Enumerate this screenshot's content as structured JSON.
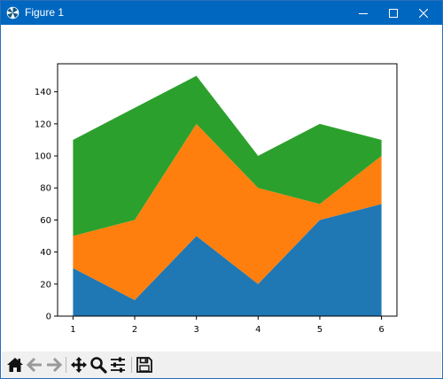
{
  "window": {
    "title": "Figure 1",
    "titlebar_color": "#0067c0"
  },
  "toolbar": {
    "tools": [
      {
        "name": "home-icon"
      },
      {
        "name": "back-arrow-icon"
      },
      {
        "name": "forward-arrow-icon"
      },
      {
        "name": "pan-icon"
      },
      {
        "name": "zoom-icon"
      },
      {
        "name": "configure-subplots-icon"
      },
      {
        "name": "save-icon"
      }
    ]
  },
  "chart_data": {
    "type": "area",
    "stacked": true,
    "x": [
      1,
      2,
      3,
      4,
      5,
      6
    ],
    "series": [
      {
        "values": [
          30,
          10,
          50,
          20,
          60,
          70
        ],
        "color": "#1f77b4"
      },
      {
        "values": [
          20,
          50,
          70,
          60,
          10,
          30
        ],
        "color": "#ff7f0e"
      },
      {
        "values": [
          60,
          70,
          30,
          20,
          50,
          10
        ],
        "color": "#2ca02c"
      }
    ],
    "xlim": [
      0.75,
      6.25
    ],
    "ylim": [
      0,
      157.5
    ],
    "xticks": [
      "1",
      "2",
      "3",
      "4",
      "5",
      "6"
    ],
    "yticks": [
      "0",
      "20",
      "40",
      "60",
      "80",
      "100",
      "120",
      "140"
    ],
    "grid": false,
    "title": "",
    "xlabel": "",
    "ylabel": ""
  }
}
